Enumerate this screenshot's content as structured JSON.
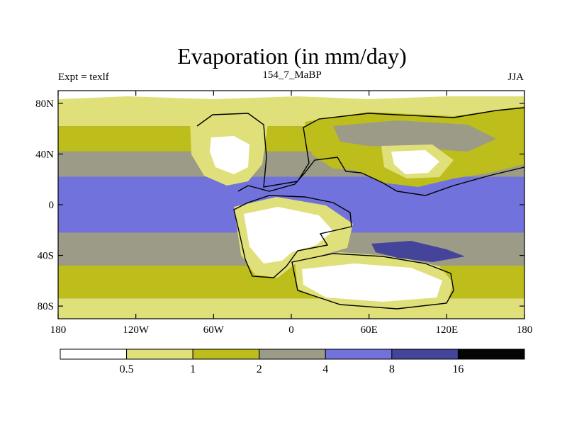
{
  "chart_data": {
    "type": "heatmap",
    "title": "Evaporation (in mm/day)",
    "left_label": "Expt = texlf",
    "center_label": "154_7_MaBP",
    "right_label": "JJA",
    "x_range": [
      -180,
      180
    ],
    "y_range": [
      -90,
      90
    ],
    "x_ticks": [
      {
        "value": -180,
        "label": "180"
      },
      {
        "value": -120,
        "label": "120W"
      },
      {
        "value": -60,
        "label": "60W"
      },
      {
        "value": 0,
        "label": "0"
      },
      {
        "value": 60,
        "label": "60E"
      },
      {
        "value": 120,
        "label": "120E"
      },
      {
        "value": 180,
        "label": "180"
      }
    ],
    "y_ticks": [
      {
        "value": 80,
        "label": "80N"
      },
      {
        "value": 40,
        "label": "40N"
      },
      {
        "value": 0,
        "label": "0"
      },
      {
        "value": -40,
        "label": "40S"
      },
      {
        "value": -80,
        "label": "80S"
      }
    ],
    "colorbar": {
      "levels": [
        "0.5",
        "1",
        "2",
        "4",
        "8",
        "16"
      ],
      "colors": [
        "#ffffff",
        "#e0e07a",
        "#bdbd1c",
        "#9b9b88",
        "#7272dd",
        "#44449a",
        "#050505"
      ]
    },
    "regions": [
      {
        "name": "north-arctic-band",
        "level": 1,
        "lon": [
          -180,
          180
        ],
        "lat": [
          62,
          90
        ]
      },
      {
        "name": "northern-ocean-mid",
        "level": 2,
        "lon": [
          -180,
          180
        ],
        "lat": [
          42,
          62
        ]
      },
      {
        "name": "northern-subtropics",
        "level": 3,
        "lon": [
          -180,
          180
        ],
        "lat": [
          22,
          42
        ]
      },
      {
        "name": "tropical-ocean",
        "level": 4,
        "lon": [
          -180,
          180
        ],
        "lat": [
          -22,
          22
        ]
      },
      {
        "name": "southern-subtropics",
        "level": 3,
        "lon": [
          -180,
          180
        ],
        "lat": [
          -48,
          -22
        ]
      },
      {
        "name": "southern-ocean-mid",
        "level": 2,
        "lon": [
          -180,
          180
        ],
        "lat": [
          -74,
          -48
        ]
      },
      {
        "name": "south-polar-band",
        "level": 1,
        "lon": [
          -180,
          180
        ],
        "lat": [
          -90,
          -74
        ]
      }
    ]
  }
}
